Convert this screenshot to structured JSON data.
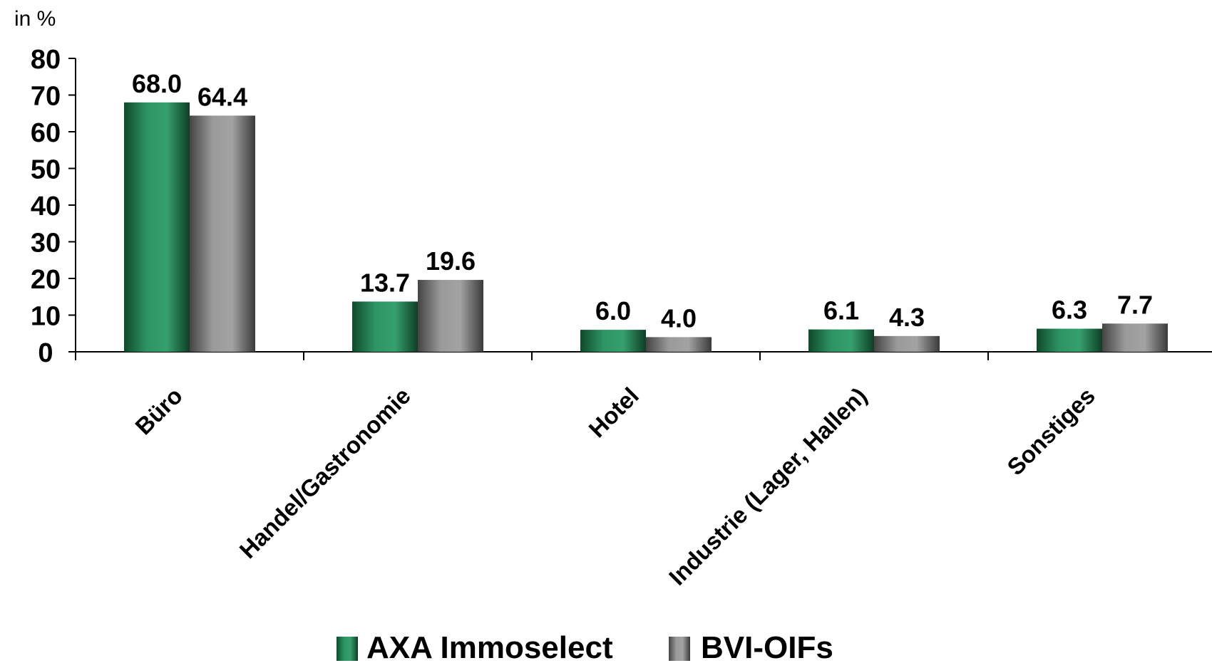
{
  "chart_data": {
    "type": "bar",
    "unit_label": "in %",
    "categories": [
      "Büro",
      "Handel/Gastronomie",
      "Hotel",
      "Industrie (Lager, Hallen)",
      "Sonstiges"
    ],
    "series": [
      {
        "name": "AXA Immoselect",
        "values": [
          68.0,
          13.7,
          6.0,
          6.1,
          6.3
        ],
        "labels": [
          "68.0",
          "13.7",
          "6.0",
          "6.1",
          "6.3"
        ],
        "color": "#2e9463"
      },
      {
        "name": "BVI-OIFs",
        "values": [
          64.4,
          19.6,
          4.0,
          4.3,
          7.7
        ],
        "labels": [
          "64.4",
          "19.6",
          "4.0",
          "4.3",
          "7.7"
        ],
        "color": "#8c8c8c"
      }
    ],
    "ylim": [
      0,
      80
    ],
    "yticks": [
      0,
      10,
      20,
      30,
      40,
      50,
      60,
      70,
      80
    ],
    "ytick_labels": [
      "0",
      "10",
      "20",
      "30",
      "40",
      "50",
      "60",
      "70",
      "80"
    ],
    "grid": false,
    "legend": "bottom"
  }
}
